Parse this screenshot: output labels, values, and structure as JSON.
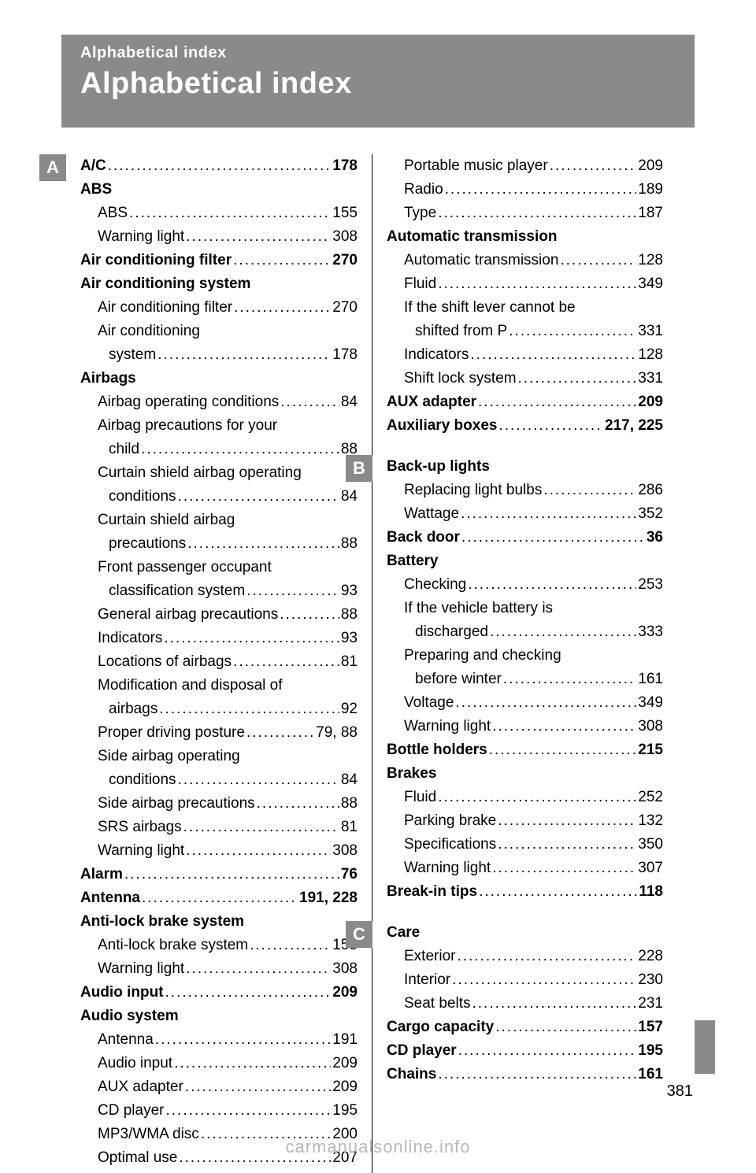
{
  "header": {
    "breadcrumb": "Alphabetical index",
    "title": "Alphabetical index"
  },
  "pageNumber": "381",
  "footer": "carmanualsonline.info",
  "left": [
    {
      "letter": "A",
      "entries": [
        {
          "label": "A/C",
          "pages": "178",
          "bold": true
        },
        {
          "label": "ABS",
          "bold": true,
          "nopage": true
        },
        {
          "label": "ABS",
          "pages": "155",
          "sub": true
        },
        {
          "label": "Warning light",
          "pages": "308",
          "sub": true
        },
        {
          "label": "Air conditioning filter",
          "pages": "270",
          "bold": true
        },
        {
          "label": "Air conditioning system",
          "bold": true,
          "nopage": true
        },
        {
          "label": "Air conditioning filter",
          "pages": "270",
          "sub": true
        },
        {
          "label": "Air conditioning",
          "sub": true,
          "nopage": true
        },
        {
          "label": "system",
          "pages": "178",
          "subwrap": true
        },
        {
          "label": "Airbags",
          "bold": true,
          "nopage": true
        },
        {
          "label": "Airbag operating conditions",
          "pages": "84",
          "sub": true
        },
        {
          "label": "Airbag precautions for your",
          "sub": true,
          "nopage": true
        },
        {
          "label": "child",
          "pages": "88",
          "subwrap": true
        },
        {
          "label": "Curtain shield airbag operating",
          "sub": true,
          "nopage": true
        },
        {
          "label": "conditions",
          "pages": "84",
          "subwrap": true
        },
        {
          "label": "Curtain shield airbag",
          "sub": true,
          "nopage": true
        },
        {
          "label": "precautions",
          "pages": "88",
          "subwrap": true
        },
        {
          "label": "Front passenger occupant",
          "sub": true,
          "nopage": true
        },
        {
          "label": "classification system",
          "pages": "93",
          "subwrap": true
        },
        {
          "label": "General airbag precautions",
          "pages": "88",
          "sub": true
        },
        {
          "label": "Indicators",
          "pages": "93",
          "sub": true
        },
        {
          "label": "Locations of airbags",
          "pages": "81",
          "sub": true
        },
        {
          "label": "Modification and disposal of",
          "sub": true,
          "nopage": true
        },
        {
          "label": "airbags",
          "pages": "92",
          "subwrap": true
        },
        {
          "label": "Proper driving posture",
          "pages": "79, 88",
          "sub": true
        },
        {
          "label": "Side airbag operating",
          "sub": true,
          "nopage": true
        },
        {
          "label": "conditions",
          "pages": "84",
          "subwrap": true
        },
        {
          "label": "Side airbag precautions",
          "pages": "88",
          "sub": true
        },
        {
          "label": "SRS airbags",
          "pages": "81",
          "sub": true
        },
        {
          "label": "Warning light",
          "pages": "308",
          "sub": true
        },
        {
          "label": "Alarm",
          "pages": "76",
          "bold": true
        },
        {
          "label": "Antenna",
          "pages": "191, 228",
          "bold": true
        },
        {
          "label": "Anti-lock brake system",
          "bold": true,
          "nopage": true
        },
        {
          "label": "Anti-lock brake system",
          "pages": "155",
          "sub": true
        },
        {
          "label": "Warning light",
          "pages": "308",
          "sub": true
        },
        {
          "label": "Audio input",
          "pages": "209",
          "bold": true
        },
        {
          "label": "Audio system",
          "bold": true,
          "nopage": true
        },
        {
          "label": "Antenna",
          "pages": "191",
          "sub": true
        },
        {
          "label": "Audio input",
          "pages": "209",
          "sub": true
        },
        {
          "label": "AUX adapter",
          "pages": "209",
          "sub": true
        },
        {
          "label": "CD player",
          "pages": "195",
          "sub": true
        },
        {
          "label": "MP3/WMA disc",
          "pages": "200",
          "sub": true
        },
        {
          "label": "Optimal use",
          "pages": "207",
          "sub": true
        }
      ]
    }
  ],
  "right": [
    {
      "entries": [
        {
          "label": "Portable music player",
          "pages": "209",
          "sub": true
        },
        {
          "label": "Radio",
          "pages": "189",
          "sub": true
        },
        {
          "label": "Type",
          "pages": "187",
          "sub": true
        },
        {
          "label": "Automatic transmission",
          "bold": true,
          "nopage": true
        },
        {
          "label": "Automatic transmission",
          "pages": "128",
          "sub": true
        },
        {
          "label": "Fluid",
          "pages": "349",
          "sub": true
        },
        {
          "label": "If the shift lever cannot be",
          "sub": true,
          "nopage": true
        },
        {
          "label": "shifted from P",
          "pages": "331",
          "subwrap": true
        },
        {
          "label": "Indicators",
          "pages": "128",
          "sub": true
        },
        {
          "label": "Shift lock system",
          "pages": "331",
          "sub": true
        },
        {
          "label": "AUX adapter",
          "pages": "209",
          "bold": true
        },
        {
          "label": "Auxiliary boxes",
          "pages": "217, 225",
          "bold": true
        }
      ]
    },
    {
      "letter": "B",
      "gapBefore": true,
      "entries": [
        {
          "label": "Back-up lights",
          "bold": true,
          "nopage": true
        },
        {
          "label": "Replacing light bulbs",
          "pages": "286",
          "sub": true
        },
        {
          "label": "Wattage",
          "pages": "352",
          "sub": true
        },
        {
          "label": "Back door",
          "pages": "36",
          "bold": true
        },
        {
          "label": "Battery",
          "bold": true,
          "nopage": true
        },
        {
          "label": "Checking",
          "pages": "253",
          "sub": true
        },
        {
          "label": "If the vehicle battery is",
          "sub": true,
          "nopage": true
        },
        {
          "label": "discharged",
          "pages": "333",
          "subwrap": true
        },
        {
          "label": "Preparing and checking",
          "sub": true,
          "nopage": true
        },
        {
          "label": "before winter",
          "pages": "161",
          "subwrap": true
        },
        {
          "label": "Voltage",
          "pages": "349",
          "sub": true
        },
        {
          "label": "Warning light",
          "pages": "308",
          "sub": true
        },
        {
          "label": "Bottle holders",
          "pages": "215",
          "bold": true
        },
        {
          "label": "Brakes",
          "bold": true,
          "nopage": true
        },
        {
          "label": "Fluid",
          "pages": "252",
          "sub": true
        },
        {
          "label": "Parking brake",
          "pages": "132",
          "sub": true
        },
        {
          "label": "Specifications",
          "pages": "350",
          "sub": true
        },
        {
          "label": "Warning light",
          "pages": "307",
          "sub": true
        },
        {
          "label": "Break-in tips",
          "pages": "118",
          "bold": true
        }
      ]
    },
    {
      "letter": "C",
      "gapBefore": true,
      "entries": [
        {
          "label": "Care",
          "bold": true,
          "nopage": true
        },
        {
          "label": "Exterior",
          "pages": "228",
          "sub": true
        },
        {
          "label": "Interior",
          "pages": "230",
          "sub": true
        },
        {
          "label": "Seat belts",
          "pages": "231",
          "sub": true
        },
        {
          "label": "Cargo capacity",
          "pages": "157",
          "bold": true
        },
        {
          "label": "CD player",
          "pages": "195",
          "bold": true
        },
        {
          "label": "Chains",
          "pages": "161",
          "bold": true
        }
      ]
    }
  ]
}
